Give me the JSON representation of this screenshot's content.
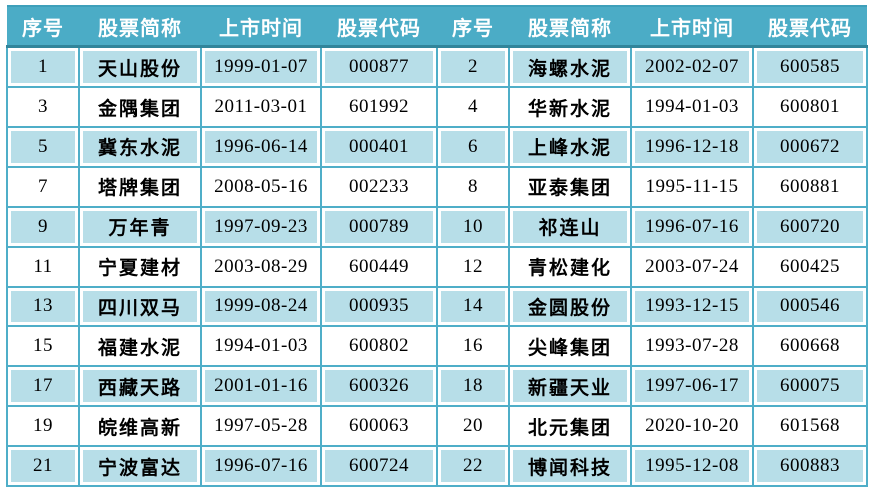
{
  "table": {
    "columns": [
      "序号",
      "股票简称",
      "上市时间",
      "股票代码",
      "序号",
      "股票简称",
      "上市时间",
      "股票代码"
    ],
    "rows": [
      [
        "1",
        "天山股份",
        "1999-01-07",
        "000877",
        "2",
        "海螺水泥",
        "2002-02-07",
        "600585"
      ],
      [
        "3",
        "金隅集团",
        "2011-03-01",
        "601992",
        "4",
        "华新水泥",
        "1994-01-03",
        "600801"
      ],
      [
        "5",
        "冀东水泥",
        "1996-06-14",
        "000401",
        "6",
        "上峰水泥",
        "1996-12-18",
        "000672"
      ],
      [
        "7",
        "塔牌集团",
        "2008-05-16",
        "002233",
        "8",
        "亚泰集团",
        "1995-11-15",
        "600881"
      ],
      [
        "9",
        "万年青",
        "1997-09-23",
        "000789",
        "10",
        "祁连山",
        "1996-07-16",
        "600720"
      ],
      [
        "11",
        "宁夏建材",
        "2003-08-29",
        "600449",
        "12",
        "青松建化",
        "2003-07-24",
        "600425"
      ],
      [
        "13",
        "四川双马",
        "1999-08-24",
        "000935",
        "14",
        "金圆股份",
        "1993-12-15",
        "000546"
      ],
      [
        "15",
        "福建水泥",
        "1994-01-03",
        "600802",
        "16",
        "尖峰集团",
        "1993-07-28",
        "600668"
      ],
      [
        "17",
        "西藏天路",
        "2001-01-16",
        "600326",
        "18",
        "新疆天业",
        "1997-06-17",
        "600075"
      ],
      [
        "19",
        "皖维高新",
        "1997-05-28",
        "600063",
        "20",
        "北元集团",
        "2020-10-20",
        "601568"
      ],
      [
        "21",
        "宁波富达",
        "1996-07-16",
        "600724",
        "22",
        "博闻科技",
        "1995-12-08",
        "600883"
      ]
    ]
  },
  "colors": {
    "header_bg": "#4BACC6",
    "header_text": "#FFFFFF",
    "header_border_dark": "#31859B",
    "gridline": "#4FAEC8",
    "band_fill": "#B7DEE8",
    "row_fill": "#FFFFFF",
    "body_text": "#000000"
  }
}
